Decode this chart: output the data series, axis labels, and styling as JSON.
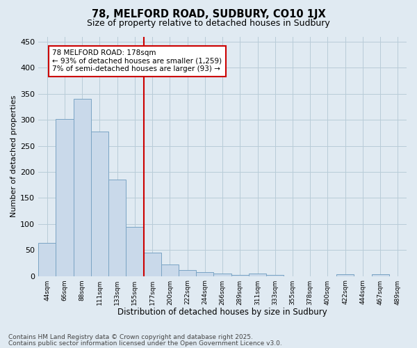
{
  "title1": "78, MELFORD ROAD, SUDBURY, CO10 1JX",
  "title2": "Size of property relative to detached houses in Sudbury",
  "xlabel": "Distribution of detached houses by size in Sudbury",
  "ylabel": "Number of detached properties",
  "categories": [
    "44sqm",
    "66sqm",
    "88sqm",
    "111sqm",
    "133sqm",
    "155sqm",
    "177sqm",
    "200sqm",
    "222sqm",
    "244sqm",
    "266sqm",
    "289sqm",
    "311sqm",
    "333sqm",
    "355sqm",
    "378sqm",
    "400sqm",
    "422sqm",
    "444sqm",
    "467sqm",
    "489sqm"
  ],
  "values": [
    63,
    302,
    340,
    278,
    185,
    95,
    45,
    22,
    11,
    8,
    5,
    2,
    5,
    2,
    0,
    0,
    0,
    4,
    0,
    4,
    0
  ],
  "bar_color": "#c9d9ea",
  "bar_edge_color": "#7aa4c4",
  "bar_edge_width": 0.7,
  "grid_color": "#b8ccd8",
  "bg_color": "#e0eaf2",
  "vline_x": 6.0,
  "vline_color": "#cc0000",
  "annotation_line1": "78 MELFORD ROAD: 178sqm",
  "annotation_line2": "← 93% of detached houses are smaller (1,259)",
  "annotation_line3": "7% of semi-detached houses are larger (93) →",
  "annotation_box_color": "#ffffff",
  "annotation_box_edge": "#cc0000",
  "footer1": "Contains HM Land Registry data © Crown copyright and database right 2025.",
  "footer2": "Contains public sector information licensed under the Open Government Licence v3.0.",
  "ylim": [
    0,
    460
  ],
  "yticks": [
    0,
    50,
    100,
    150,
    200,
    250,
    300,
    350,
    400,
    450
  ]
}
